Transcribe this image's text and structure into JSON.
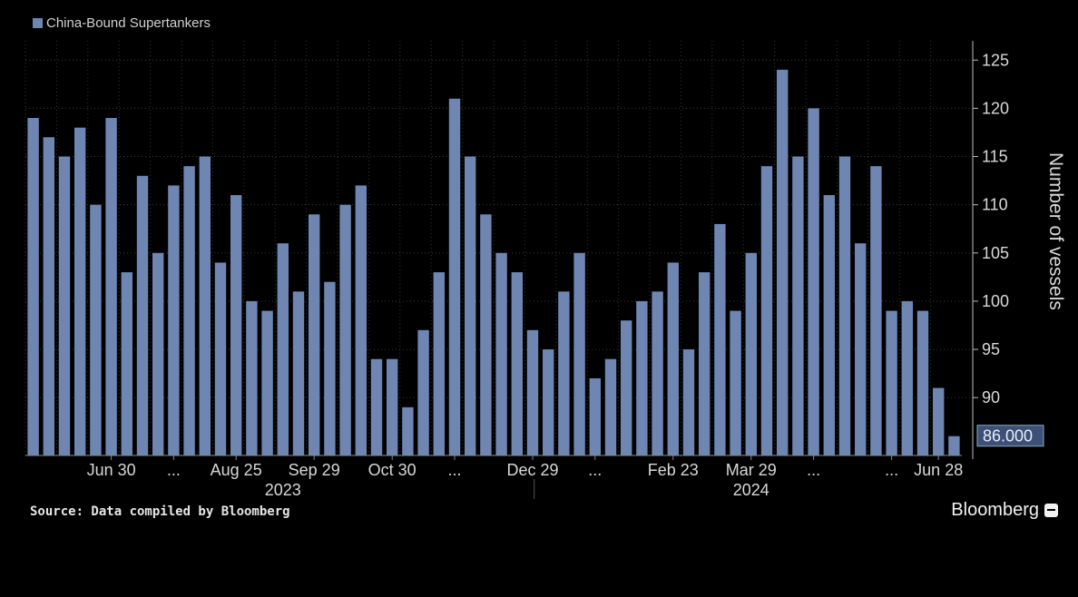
{
  "legend": {
    "label": "China-Bound Supertankers",
    "color": "#6f86b3"
  },
  "source_text": "Source: Data compiled by Bloomberg",
  "brand_text": "Bloomberg",
  "colors": {
    "bar": "#6f86b3",
    "background": "#000000",
    "text": "#d8d8d8",
    "grid": "#555555",
    "last_value_box": "#3d5177"
  },
  "chart_data": {
    "type": "bar",
    "title": "",
    "xlabel": "",
    "ylabel": "Number of vessels",
    "ylim": [
      84,
      127
    ],
    "yticks": [
      90,
      95,
      100,
      105,
      110,
      115,
      120,
      125
    ],
    "grid": true,
    "legend_position": "top-left",
    "last_value_label": "86.000",
    "series": [
      {
        "name": "China-Bound Supertankers",
        "values": [
          119,
          117,
          115,
          118,
          110,
          119,
          103,
          113,
          105,
          112,
          114,
          115,
          104,
          111,
          100,
          99,
          106,
          101,
          109,
          102,
          110,
          112,
          94,
          94,
          89,
          97,
          103,
          121,
          115,
          109,
          105,
          103,
          97,
          95,
          101,
          105,
          92,
          94,
          98,
          100,
          101,
          104,
          95,
          103,
          108,
          99,
          105,
          114,
          124,
          115,
          120,
          111,
          115,
          106,
          114,
          99,
          100,
          99,
          91,
          86
        ]
      }
    ],
    "x_tick_labels": [
      {
        "label": "Jun 30",
        "index": 5
      },
      {
        "label": "...",
        "index": 9
      },
      {
        "label": "Aug 25",
        "index": 13
      },
      {
        "label": "Sep 29",
        "index": 18
      },
      {
        "label": "Oct 30",
        "index": 23
      },
      {
        "label": "...",
        "index": 27
      },
      {
        "label": "Dec 29",
        "index": 32
      },
      {
        "label": "...",
        "index": 36
      },
      {
        "label": "Feb 23",
        "index": 41
      },
      {
        "label": "Mar 29",
        "index": 46
      },
      {
        "label": "...",
        "index": 50
      },
      {
        "label": "...",
        "index": 55
      },
      {
        "label": "Jun 28",
        "index": 58
      }
    ],
    "year_labels": [
      {
        "label": "2023",
        "index": 16
      },
      {
        "label": "2024",
        "index": 46
      }
    ],
    "year_divider_index": 32
  }
}
